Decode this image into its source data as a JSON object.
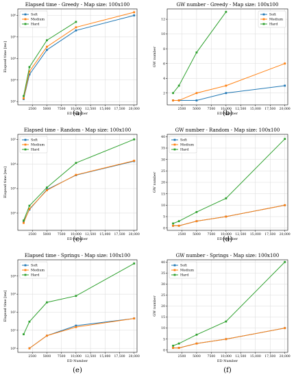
{
  "figure": {
    "captions": [
      "(a)",
      "(b)",
      "(c)",
      "(d)",
      "(e)",
      "(f)"
    ]
  },
  "colors": {
    "Soft": "#1f77b4",
    "Medium": "#ff7f0e",
    "Hard": "#2ca02c"
  },
  "chart_data": [
    {
      "type": "line",
      "title": "Elapsed time - Greedy - Map size: 100x100",
      "xlabel": "ED Number",
      "ylabel": "Elapsed time [ms]",
      "yscale": "log",
      "xlim": [
        0,
        20500
      ],
      "ylim": [
        70,
        2000000
      ],
      "xticks": [
        2500,
        5000,
        7500,
        10000,
        12500,
        15000,
        17500,
        20000
      ],
      "xtick_labels": [
        "2500",
        "5000",
        "7500",
        "10,000",
        "12,500",
        "15,000",
        "17,500",
        "20,000"
      ],
      "yticks": [
        100,
        1000,
        10000,
        100000,
        1000000
      ],
      "ytick_labels": [
        "10²",
        "10³",
        "10⁴",
        "10⁵",
        "10⁶"
      ],
      "grid": true,
      "legend": "top-left",
      "x": [
        1000,
        2000,
        5000,
        10000,
        20000
      ],
      "series": [
        {
          "name": "Soft",
          "values": [
            130,
            1800,
            25000,
            200000,
            1000000
          ]
        },
        {
          "name": "Medium",
          "values": [
            140,
            2500,
            35000,
            280000,
            1400000
          ]
        },
        {
          "name": "Hard",
          "values": [
            180,
            4000,
            70000,
            500000,
            null
          ]
        }
      ]
    },
    {
      "type": "line",
      "title": "GW number - Greedy - Map size: 100x100",
      "xlabel": "ED Number",
      "ylabel": "GW number",
      "yscale": "linear",
      "xlim": [
        0,
        20500
      ],
      "ylim": [
        0.4,
        13.4
      ],
      "xticks": [
        2500,
        5000,
        7500,
        10000,
        12500,
        15000,
        17500,
        20000
      ],
      "xtick_labels": [
        "2500",
        "5000",
        "7500",
        "10,000",
        "12,500",
        "15,000",
        "17,500",
        "20,000"
      ],
      "yticks": [
        2,
        4,
        6,
        8,
        10,
        12
      ],
      "ytick_labels": [
        "2",
        "4",
        "6",
        "8",
        "10",
        "12"
      ],
      "grid": true,
      "legend": "top-right",
      "x": [
        1000,
        2000,
        5000,
        10000,
        20000
      ],
      "series": [
        {
          "name": "Soft",
          "values": [
            1,
            1,
            1,
            2,
            3
          ]
        },
        {
          "name": "Medium",
          "values": [
            1,
            1,
            2,
            3,
            6
          ]
        },
        {
          "name": "Hard",
          "values": [
            2,
            3,
            7.5,
            13,
            null
          ]
        }
      ]
    },
    {
      "type": "line",
      "title": "Elapsed time - Random - Map size: 100x100",
      "xlabel": "ED Number",
      "ylabel": "Elapsed time [ms]",
      "yscale": "log",
      "xlim": [
        0,
        20500
      ],
      "ylim": [
        20,
        160000
      ],
      "xticks": [
        2500,
        5000,
        7500,
        10000,
        12500,
        15000,
        17500,
        20000
      ],
      "xtick_labels": [
        "2500",
        "5000",
        "7500",
        "10,000",
        "12,500",
        "15,000",
        "17,500",
        "20,000"
      ],
      "yticks": [
        100,
        1000,
        10000,
        100000
      ],
      "ytick_labels": [
        "10²",
        "10³",
        "10⁴",
        "10⁵"
      ],
      "grid": true,
      "legend": "top-left",
      "x": [
        1000,
        2000,
        5000,
        10000,
        20000
      ],
      "series": [
        {
          "name": "Soft",
          "values": [
            45,
            140,
            900,
            3500,
            13000
          ]
        },
        {
          "name": "Medium",
          "values": [
            40,
            150,
            850,
            3600,
            13500
          ]
        },
        {
          "name": "Hard",
          "values": [
            50,
            200,
            1100,
            11000,
            100000
          ]
        }
      ]
    },
    {
      "type": "line",
      "title": "GW number - Random - Map size: 100x100",
      "xlabel": "ED Number",
      "ylabel": "GW number",
      "yscale": "linear",
      "xlim": [
        0,
        20500
      ],
      "ylim": [
        -1,
        41
      ],
      "xticks": [
        2500,
        5000,
        7500,
        10000,
        12500,
        15000,
        17500,
        20000
      ],
      "xtick_labels": [
        "2500",
        "5000",
        "7500",
        "10,000",
        "12,500",
        "15,000",
        "17,500",
        "20,000"
      ],
      "yticks": [
        0,
        5,
        10,
        15,
        20,
        25,
        30,
        35,
        40
      ],
      "ytick_labels": [
        "0",
        "5",
        "10",
        "15",
        "20",
        "25",
        "30",
        "35",
        "40"
      ],
      "grid": true,
      "legend": "top-left",
      "x": [
        1000,
        2000,
        5000,
        10000,
        20000
      ],
      "series": [
        {
          "name": "Soft",
          "values": [
            1,
            1,
            3,
            5,
            10
          ]
        },
        {
          "name": "Medium",
          "values": [
            1,
            1,
            3,
            5,
            10
          ]
        },
        {
          "name": "Hard",
          "values": [
            2,
            3,
            7,
            13,
            39
          ]
        }
      ]
    },
    {
      "type": "line",
      "title": "Elapsed time - Springs - Map size: 100x100",
      "xlabel": "ED Number",
      "ylabel": "Elapsed time [ms]",
      "yscale": "log",
      "xlim": [
        0,
        20500
      ],
      "ylim": [
        0.6,
        80000
      ],
      "xticks": [
        2500,
        5000,
        7500,
        10000,
        12500,
        15000,
        17500,
        20000
      ],
      "xtick_labels": [
        "2500",
        "5000",
        "7500",
        "10,000",
        "12,500",
        "15,000",
        "17,500",
        "20,000"
      ],
      "yticks": [
        1,
        10,
        100,
        1000,
        10000
      ],
      "ytick_labels": [
        "10⁰",
        "10¹",
        "10²",
        "10³",
        "10⁴"
      ],
      "grid": true,
      "legend": "top-left",
      "x": [
        1000,
        2000,
        5000,
        10000,
        20000
      ],
      "series": [
        {
          "name": "Soft",
          "values": [
            null,
            1,
            5,
            18,
            45
          ]
        },
        {
          "name": "Medium",
          "values": [
            null,
            1,
            5,
            15,
            45
          ]
        },
        {
          "name": "Hard",
          "values": [
            6,
            30,
            350,
            800,
            50000
          ]
        }
      ]
    },
    {
      "type": "line",
      "title": "GW number - Springs - Map size: 100x100",
      "xlabel": "ED Number",
      "ylabel": "GW number",
      "yscale": "linear",
      "xlim": [
        0,
        20500
      ],
      "ylim": [
        -1,
        41
      ],
      "xticks": [
        2500,
        5000,
        7500,
        10000,
        12500,
        15000,
        17500,
        20000
      ],
      "xtick_labels": [
        "2500",
        "5000",
        "7500",
        "10,000",
        "12,500",
        "15,000",
        "17,500",
        "20,000"
      ],
      "yticks": [
        0,
        5,
        10,
        15,
        20,
        25,
        30,
        35,
        40
      ],
      "ytick_labels": [
        "0",
        "5",
        "10",
        "15",
        "20",
        "25",
        "30",
        "35",
        "40"
      ],
      "grid": true,
      "legend": "top-left",
      "x": [
        1000,
        2000,
        5000,
        10000,
        20000
      ],
      "series": [
        {
          "name": "Soft",
          "values": [
            1,
            1,
            3,
            5,
            10
          ]
        },
        {
          "name": "Medium",
          "values": [
            1,
            1,
            3,
            5,
            10
          ]
        },
        {
          "name": "Hard",
          "values": [
            2,
            3,
            7,
            13,
            40
          ]
        }
      ]
    }
  ]
}
